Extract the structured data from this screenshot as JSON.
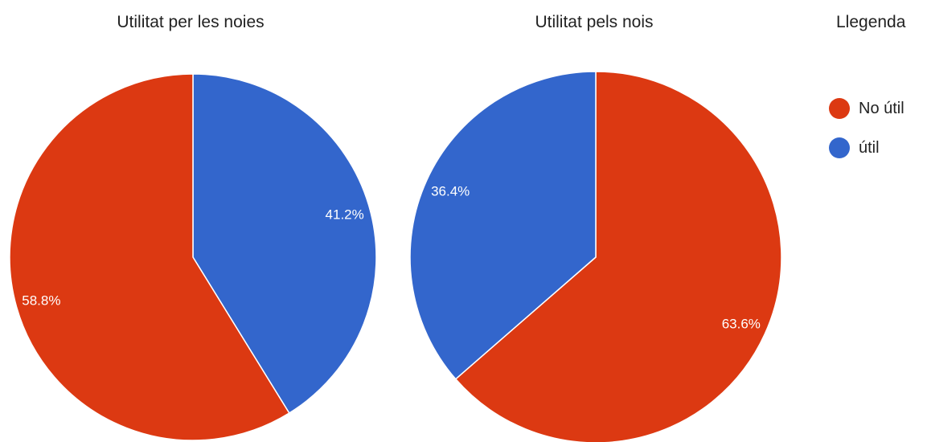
{
  "chart_data": [
    {
      "type": "pie",
      "title": "Utilitat per les noies",
      "categories": [
        "No útil",
        "útil"
      ],
      "values": [
        58.8,
        41.2
      ],
      "value_labels": [
        "58.8%",
        "41.2%"
      ],
      "legend": "right"
    },
    {
      "type": "pie",
      "title": "Utilitat pels nois",
      "categories": [
        "No útil",
        "útil"
      ],
      "values": [
        63.6,
        36.4
      ],
      "value_labels": [
        "63.6%",
        "36.4%"
      ],
      "legend": "right"
    }
  ],
  "legend": {
    "title": "Llegenda",
    "items": [
      {
        "label": "No útil",
        "color": "#dc3912"
      },
      {
        "label": "útil",
        "color": "#3366cc"
      }
    ]
  }
}
